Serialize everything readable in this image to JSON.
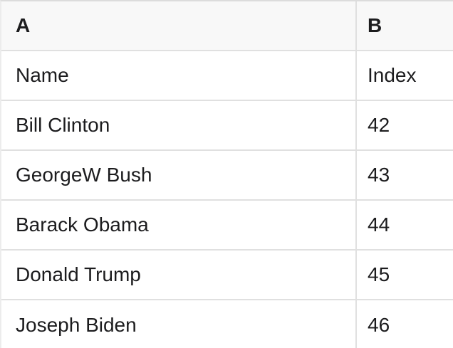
{
  "table": {
    "column_headers": [
      "A",
      "B"
    ],
    "rows": [
      [
        "Name",
        "Index"
      ],
      [
        "Bill Clinton",
        "42"
      ],
      [
        "GeorgeW Bush",
        "43"
      ],
      [
        "Barack Obama",
        "44"
      ],
      [
        "Donald Trump",
        "45"
      ],
      [
        "Joseph Biden",
        "46"
      ]
    ]
  },
  "colors": {
    "header_bg": "#f8f8f8",
    "border": "#e0e0e0",
    "border_top": "#dcdcdc",
    "border_left": "#ececec",
    "text": "#1c1c1e"
  }
}
